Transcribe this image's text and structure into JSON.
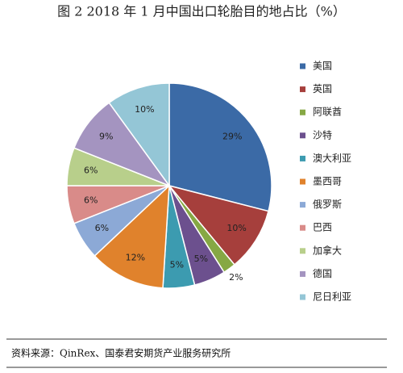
{
  "chart_data": {
    "type": "pie",
    "title": "图 2   2018 年 1 月中国出口轮胎目的地占比（%）",
    "source": "资料来源：QinRex、国泰君安期货产业服务研究所",
    "legend": "right",
    "categories": [
      "美国",
      "英国",
      "阿联酋",
      "沙特",
      "澳大利亚",
      "墨西哥",
      "俄罗斯",
      "巴西",
      "加拿大",
      "德国",
      "尼日利亚"
    ],
    "values": [
      29,
      10,
      2,
      5,
      5,
      12,
      6,
      6,
      6,
      9,
      10
    ],
    "value_labels": [
      "29%",
      "10%",
      "2%",
      "5%",
      "5%",
      "12%",
      "6%",
      "6%",
      "6%",
      "9%",
      "10%"
    ],
    "colors": [
      "#3b6aa6",
      "#a63f3c",
      "#86a844",
      "#6c508e",
      "#3c9bb0",
      "#e0822c",
      "#8ca9d6",
      "#d98b89",
      "#b8cf8b",
      "#a494c0",
      "#94c6d6"
    ]
  }
}
